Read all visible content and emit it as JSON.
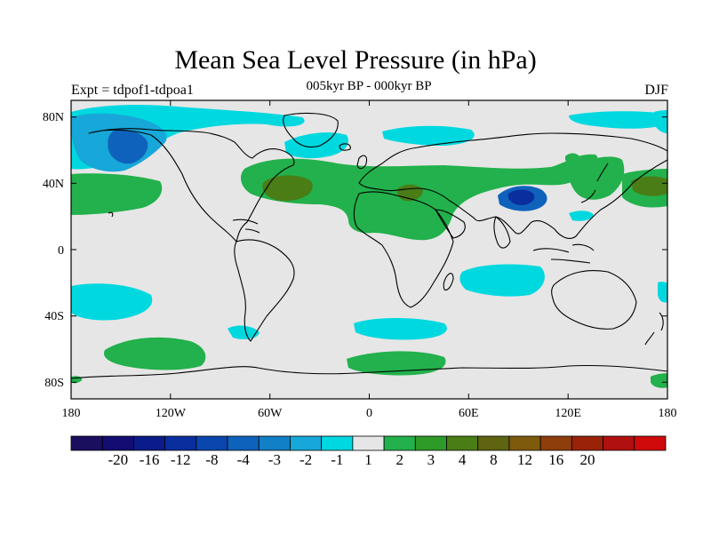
{
  "map": {
    "title": "Mean Sea Level Pressure (in hPa)",
    "experiment": "Expt = tdpof1-tdpoa1",
    "period": "005kyr BP - 000kyr BP",
    "season": "DJF",
    "projection": "cylindrical-equidistant",
    "lat_ticks": [
      "80N",
      "40N",
      "0",
      "40S",
      "80S"
    ],
    "lon_ticks": [
      "180",
      "120W",
      "60W",
      "0",
      "60E",
      "120E",
      "180"
    ]
  },
  "colorbar": {
    "labels": [
      "-20",
      "-16",
      "-12",
      "-8",
      "-4",
      "-3",
      "-2",
      "-1",
      "1",
      "2",
      "3",
      "4",
      "8",
      "12",
      "16",
      "20"
    ],
    "colors": [
      "#1a0f5f",
      "#120c73",
      "#0b1c8a",
      "#0a2e9e",
      "#0a46ae",
      "#0f62bc",
      "#1280c6",
      "#17a7d8",
      "#00d8e0",
      "#e6e6e6",
      "#22b14c",
      "#2e9a28",
      "#4a7d16",
      "#5e6410",
      "#7e5a0c",
      "#8e3e0a",
      "#9a2208",
      "#b01010",
      "#d00a0a"
    ]
  },
  "colors": {
    "neutral": "#e6e6e6",
    "cyan": "#00d8e0",
    "lightblue": "#17a7d8",
    "blue": "#0f62bc",
    "darkblue": "#0a2e9e",
    "green": "#22b14c",
    "olive": "#4a7d16",
    "coast": "#000000"
  }
}
